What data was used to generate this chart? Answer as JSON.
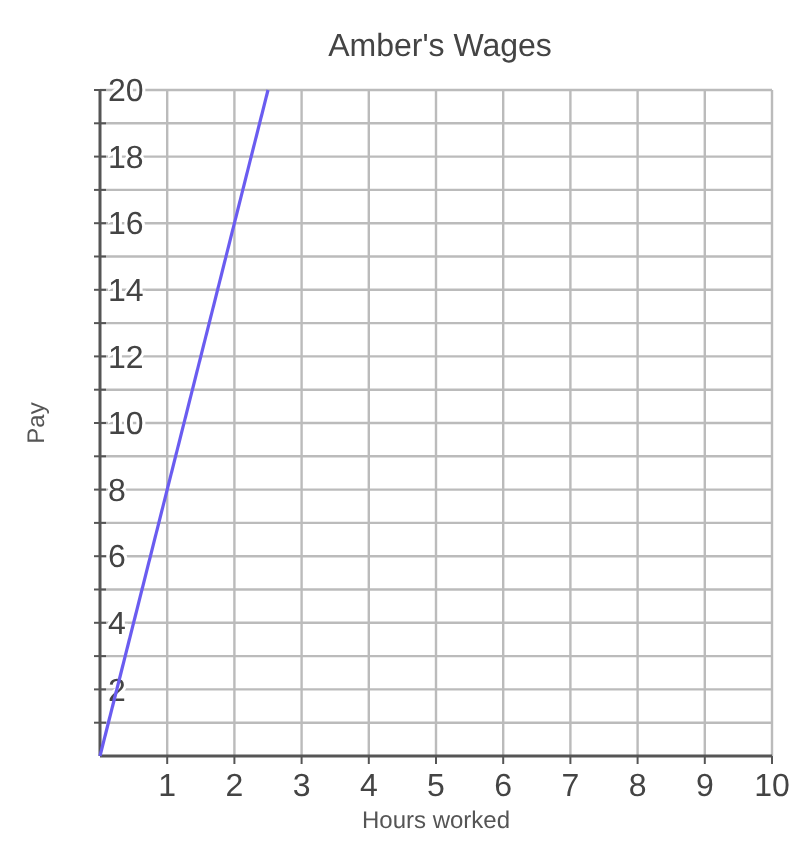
{
  "chart_data": {
    "type": "line",
    "title": "Amber's Wages",
    "xlabel": "Hours worked",
    "ylabel": "Pay",
    "series": [
      {
        "color": "#6a5cf0",
        "x": [
          0,
          2.5
        ],
        "values": [
          0,
          20
        ]
      }
    ],
    "xlim": [
      0,
      10
    ],
    "xticks": [
      1,
      2,
      3,
      4,
      5,
      6,
      7,
      8,
      9,
      10
    ],
    "ylim": [
      0,
      20
    ],
    "yticks": [
      {
        "value": 1,
        "label": null
      },
      2,
      {
        "value": 3,
        "label": null
      },
      4,
      {
        "value": 5,
        "label": null
      },
      6,
      {
        "value": 7,
        "label": null
      },
      8,
      {
        "value": 9,
        "label": null
      },
      10,
      {
        "value": 11,
        "label": null
      },
      12,
      {
        "value": 13,
        "label": null
      },
      14,
      {
        "value": 15,
        "label": null
      },
      16,
      {
        "value": 17,
        "label": null
      },
      18,
      {
        "value": 19,
        "label": null
      },
      20
    ],
    "grid": true,
    "marker": "none",
    "line_style": "solid"
  }
}
